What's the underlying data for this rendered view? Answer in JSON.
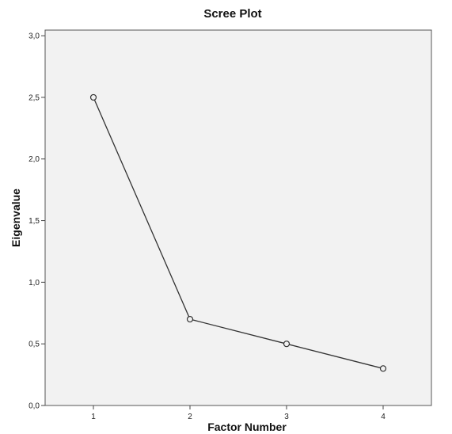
{
  "chart_data": {
    "type": "line",
    "title": "Scree Plot",
    "xlabel": "Factor Number",
    "ylabel": "Eigenvalue",
    "x": [
      1,
      2,
      3,
      4
    ],
    "x_tick_labels": [
      "1",
      "2",
      "3",
      "4"
    ],
    "xlim": [
      0.5,
      4.5
    ],
    "ylim": [
      0,
      3
    ],
    "y_ticks": [
      0,
      0.5,
      1,
      1.5,
      2,
      2.5,
      3
    ],
    "y_tick_labels": [
      "0,0",
      "0,5",
      "1,0",
      "1,5",
      "2,0",
      "2,5",
      "3,0"
    ],
    "series": [
      {
        "values": [
          2.5,
          0.7,
          0.5,
          0.3
        ]
      }
    ],
    "grid": false,
    "plot_background": "#f2f2f2",
    "line_color": "#333333",
    "marker": "open-circle"
  }
}
